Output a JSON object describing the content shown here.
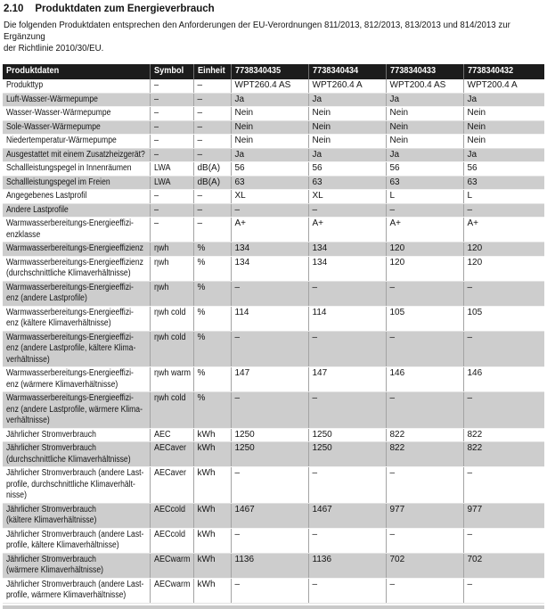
{
  "page": {
    "section_number": "2.10",
    "section_title": "Produktdaten zum Energieverbrauch",
    "intro": "Die folgenden Produktdaten entsprechen den Anforderungen der EU-Verordnungen 811/2013, 812/2013, 813/2013 und 814/2013 zur Ergänzung\nder Richtlinie 2010/30/EU."
  },
  "colors": {
    "header_bg": "#1c1c1c",
    "alt_row_bg": "#cdcdcd"
  },
  "table": {
    "headers": [
      "Produktdaten",
      "Symbol",
      "Einheit",
      "7738340435",
      "7738340434",
      "7738340433",
      "7738340432"
    ],
    "rows": [
      {
        "label": "Produkttyp",
        "symbol": "–",
        "unit": "–",
        "values": [
          "WPT260.4 AS",
          "WPT260.4 A",
          "WPT200.4 AS",
          "WPT200.4 A"
        ]
      },
      {
        "label": "Luft-Wasser-Wärmepumpe",
        "symbol": "–",
        "unit": "–",
        "values": [
          "Ja",
          "Ja",
          "Ja",
          "Ja"
        ]
      },
      {
        "label": "Wasser-Wasser-Wärmepumpe",
        "symbol": "–",
        "unit": "–",
        "values": [
          "Nein",
          "Nein",
          "Nein",
          "Nein"
        ]
      },
      {
        "label": "Sole-Wasser-Wärmepumpe",
        "symbol": "–",
        "unit": "–",
        "values": [
          "Nein",
          "Nein",
          "Nein",
          "Nein"
        ]
      },
      {
        "label": "Niedertemperatur-Wärmepumpe",
        "symbol": "–",
        "unit": "–",
        "values": [
          "Nein",
          "Nein",
          "Nein",
          "Nein"
        ]
      },
      {
        "label": "Ausgestattet mit einem Zusatzheizgerät?",
        "symbol": "–",
        "unit": "–",
        "values": [
          "Ja",
          "Ja",
          "Ja",
          "Ja"
        ]
      },
      {
        "label": "Schallleistungspegel in Innenräumen",
        "symbol": "LWA",
        "unit": "dB(A)",
        "values": [
          "56",
          "56",
          "56",
          "56"
        ]
      },
      {
        "label": "Schallleistungspegel im Freien",
        "symbol": "LWA",
        "unit": "dB(A)",
        "values": [
          "63",
          "63",
          "63",
          "63"
        ]
      },
      {
        "label": "Angegebenes Lastprofil",
        "symbol": "–",
        "unit": "–",
        "values": [
          "XL",
          "XL",
          "L",
          "L"
        ]
      },
      {
        "label": "Andere Lastprofile",
        "symbol": "–",
        "unit": "–",
        "values": [
          "–",
          "–",
          "–",
          "–"
        ]
      },
      {
        "label": "Warmwasserbereitungs-Energieeffizi-\nenzklasse",
        "symbol": "–",
        "unit": "–",
        "values": [
          "A+",
          "A+",
          "A+",
          "A+"
        ]
      },
      {
        "label": "Warmwasserbereitungs-Energieeffizienz",
        "symbol": "ηwh",
        "unit": "%",
        "values": [
          "134",
          "134",
          "120",
          "120"
        ]
      },
      {
        "label": "Warmwasserbereitungs-Energieeffizienz\n(durchschnittliche Klimaverhältnisse)",
        "symbol": "ηwh",
        "unit": "%",
        "values": [
          "134",
          "134",
          "120",
          "120"
        ]
      },
      {
        "label": "Warmwasserbereitungs-Energieeffizi-\nenz (andere Lastprofile)",
        "symbol": "ηwh",
        "unit": "%",
        "values": [
          "–",
          "–",
          "–",
          "–"
        ]
      },
      {
        "label": "Warmwasserbereitungs-Energieeffizi-\nenz (kältere Klimaverhältnisse)",
        "symbol": "ηwh cold",
        "unit": "%",
        "values": [
          "114",
          "114",
          "105",
          "105"
        ]
      },
      {
        "label": "Warmwasserbereitungs-Energieeffizi-\nenz (andere Lastprofile, kältere Klima-\nverhältnisse)",
        "symbol": "ηwh cold",
        "unit": "%",
        "values": [
          "–",
          "–",
          "–",
          "–"
        ]
      },
      {
        "label": "Warmwasserbereitungs-Energieeffizi-\nenz (wärmere Klimaverhältnisse)",
        "symbol": "ηwh warm",
        "unit": "%",
        "values": [
          "147",
          "147",
          "146",
          "146"
        ]
      },
      {
        "label": "Warmwasserbereitungs-Energieeffizi-\nenz (andere Lastprofile, wärmere Klima-\nverhältnisse)",
        "symbol": "ηwh cold",
        "unit": "%",
        "values": [
          "–",
          "–",
          "–",
          "–"
        ]
      },
      {
        "label": "Jährlicher Stromverbrauch",
        "symbol": "AEC",
        "unit": "kWh",
        "values": [
          "1250",
          "1250",
          "822",
          "822"
        ]
      },
      {
        "label": "Jährlicher Stromverbrauch\n(durchschnittliche Klimaverhältnisse)",
        "symbol": "AECaver",
        "unit": "kWh",
        "values": [
          "1250",
          "1250",
          "822",
          "822"
        ]
      },
      {
        "label": "Jährlicher Stromverbrauch (andere Last-\nprofile, durchschnittliche Klimaverhält-\nnisse)",
        "symbol": "AECaver",
        "unit": "kWh",
        "values": [
          "–",
          "–",
          "–",
          "–"
        ]
      },
      {
        "label": "Jährlicher Stromverbrauch\n(kältere Klimaverhältnisse)",
        "symbol": "AECcold",
        "unit": "kWh",
        "values": [
          "1467",
          "1467",
          "977",
          "977"
        ]
      },
      {
        "label": "Jährlicher Stromverbrauch (andere Last-\nprofile, kältere Klimaverhältnisse)",
        "symbol": "AECcold",
        "unit": "kWh",
        "values": [
          "–",
          "–",
          "–",
          "–"
        ]
      },
      {
        "label": "Jährlicher Stromverbrauch\n(wärmere Klimaverhältnisse)",
        "symbol": "AECwarm",
        "unit": "kWh",
        "values": [
          "1136",
          "1136",
          "702",
          "702"
        ]
      },
      {
        "label": "Jährlicher Stromverbrauch (andere Last-\nprofile, wärmere Klimaverhältnisse)",
        "symbol": "AECwarm",
        "unit": "kWh",
        "values": [
          "–",
          "–",
          "–",
          "–"
        ]
      }
    ]
  }
}
